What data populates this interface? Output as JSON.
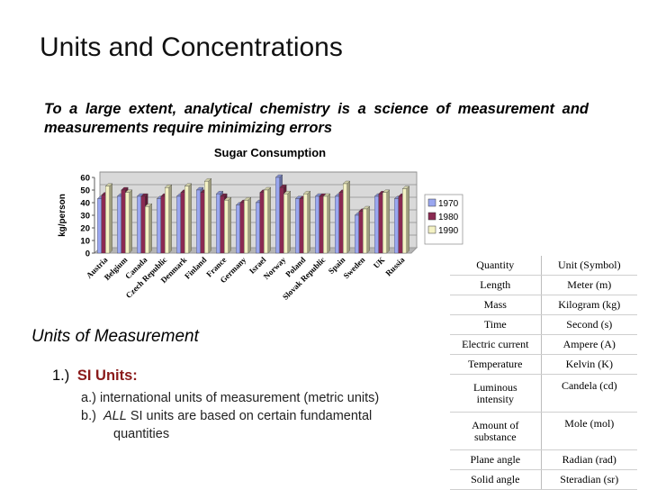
{
  "slide": {
    "title": "Units and Concentrations",
    "intro": "To a large extent, analytical chemistry is a science of measurement and measurements require minimizing errors"
  },
  "measurement": {
    "heading": "Units of Measurement",
    "item_number": "1.)",
    "item_label": "SI Units:",
    "sub_a": "a.)  international units of measurement (metric units)",
    "sub_b_prefix": "b.)  ",
    "sub_b_emph": "ALL",
    "sub_b_rest": " SI units are based on certain fundamental",
    "sub_b_cont": "quantities"
  },
  "units_table": {
    "header": {
      "quantity": "Quantity",
      "unit": "Unit (Symbol)"
    },
    "rows": [
      {
        "quantity": "Length",
        "unit": "Meter (m)"
      },
      {
        "quantity": "Mass",
        "unit": "Kilogram (kg)"
      },
      {
        "quantity": "Time",
        "unit": "Second (s)"
      },
      {
        "quantity": "Electric current",
        "unit": "Ampere (A)"
      },
      {
        "quantity": "Temperature",
        "unit": "Kelvin (K)"
      },
      {
        "quantity": "Luminous intensity",
        "unit": "Candela (cd)"
      },
      {
        "quantity": "Amount of substance",
        "unit": "Mole (mol)"
      },
      {
        "quantity": "Plane angle",
        "unit": "Radian (rad)"
      },
      {
        "quantity": "Solid angle",
        "unit": "Steradian (sr)"
      }
    ]
  },
  "chart_data": {
    "type": "bar",
    "title": "Sugar Consumption",
    "xlabel": "",
    "ylabel": "kg/person",
    "ylim": [
      0,
      60
    ],
    "yticks": [
      0,
      10,
      20,
      30,
      40,
      50,
      60
    ],
    "grid": true,
    "legend_position": "right",
    "categories": [
      "Austria",
      "Belgium",
      "Canada",
      "Czech Republic",
      "Denmark",
      "Finland",
      "France",
      "Germany",
      "Israel",
      "Norway",
      "Poland",
      "Slovak Republic",
      "Spain",
      "Sweden",
      "UK",
      "Russia"
    ],
    "series": [
      {
        "name": "1970",
        "color": "#9aa7f0",
        "values": [
          43,
          45,
          45,
          43,
          45,
          50,
          47,
          38,
          40,
          60,
          43,
          45,
          45,
          30,
          45,
          43
        ]
      },
      {
        "name": "1980",
        "color": "#8a2a52",
        "values": [
          46,
          50,
          45,
          45,
          48,
          48,
          45,
          40,
          48,
          52,
          43,
          45,
          48,
          33,
          47,
          45
        ]
      },
      {
        "name": "1990",
        "color": "#f4f2c4",
        "values": [
          53,
          48,
          37,
          52,
          53,
          57,
          42,
          42,
          50,
          47,
          47,
          45,
          55,
          35,
          48,
          51
        ]
      }
    ]
  }
}
